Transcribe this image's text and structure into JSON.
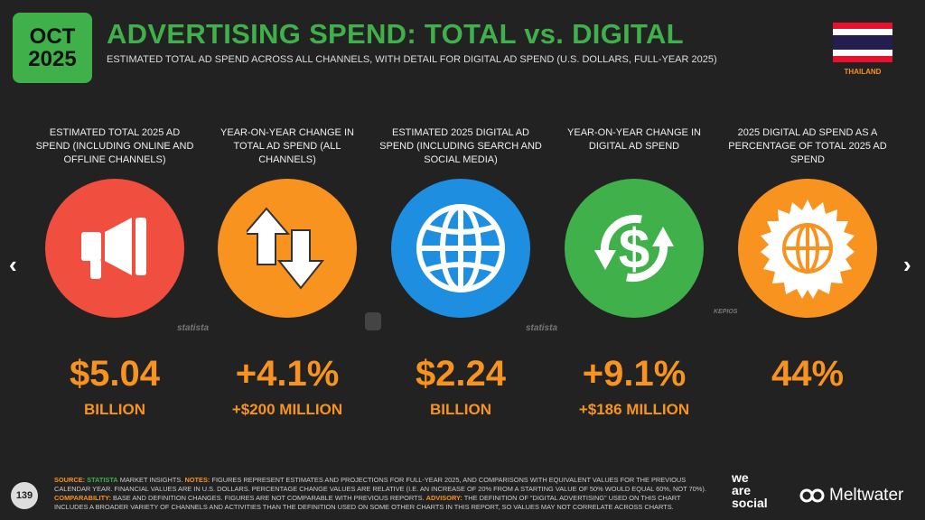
{
  "badge": {
    "month": "OCT",
    "year": "2025"
  },
  "title": "ADVERTISING SPEND: TOTAL vs. DIGITAL",
  "subtitle": "ESTIMATED TOTAL AD SPEND ACROSS ALL CHANNELS, WITH DETAIL FOR DIGITAL AD SPEND (U.S. DOLLARS, FULL-YEAR 2025)",
  "country": "THAILAND",
  "colors": {
    "green": "#3fb04a",
    "orange": "#f7931e",
    "red": "#f04e3e",
    "blue": "#1e8fe0",
    "bg": "#222222"
  },
  "nav": {
    "prev": "‹",
    "next": "›"
  },
  "metrics": [
    {
      "label": "ESTIMATED TOTAL 2025 AD SPEND (INCLUDING ONLINE AND OFFLINE CHANNELS)",
      "value": "$5.04",
      "sub": "BILLION",
      "icon": "megaphone-icon",
      "color": "#f04e3e"
    },
    {
      "label": "YEAR-ON-YEAR CHANGE IN TOTAL AD SPEND (ALL CHANNELS)",
      "value": "+4.1%",
      "sub": "+$200 MILLION",
      "icon": "up-down-arrows-icon",
      "color": "#f7931e"
    },
    {
      "label": "ESTIMATED 2025 DIGITAL AD SPEND (INCLUDING SEARCH AND SOCIAL MEDIA)",
      "value": "$2.24",
      "sub": "BILLION",
      "icon": "globe-icon",
      "color": "#1e8fe0"
    },
    {
      "label": "YEAR-ON-YEAR CHANGE IN DIGITAL AD SPEND",
      "value": "+9.1%",
      "sub": "+$186 MILLION",
      "icon": "dollar-cycle-icon",
      "color": "#3fb04a"
    },
    {
      "label": "2025 DIGITAL AD SPEND AS A PERCENTAGE OF TOTAL 2025 AD SPEND",
      "value": "44%",
      "sub": "",
      "icon": "globe-badge-icon",
      "color": "#f7931e"
    }
  ],
  "watermarks": {
    "statista": "statista",
    "kepios": "KEPIOS"
  },
  "page_number": "139",
  "footnote": {
    "source_k": "SOURCE:",
    "source_v": "STATISTA",
    "source_t": "MARKET INSIGHTS.",
    "notes_k": "NOTES:",
    "notes_t": "FIGURES REPRESENT ESTIMATES AND PROJECTIONS FOR FULL-YEAR 2025, AND COMPARISONS WITH EQUIVALENT VALUES FOR THE PREVIOUS CALENDAR YEAR. FINANCIAL VALUES ARE IN U.S. DOLLARS. PERCENTAGE CHANGE VALUES ARE RELATIVE (I.E. AN INCREASE OF 20% FROM A STARTING VALUE OF 50% WOULD EQUAL 60%, NOT 70%).",
    "comp_k": "COMPARABILITY:",
    "comp_t": "BASE AND DEFINITION CHANGES. FIGURES ARE NOT COMPARABLE WITH PREVIOUS REPORTS.",
    "adv_k": "ADVISORY:",
    "adv_t": "THE DEFINITION OF \"DIGITAL ADVERTISING\" USED ON THIS CHART INCLUDES A BROADER VARIETY OF CHANNELS AND ACTIVITIES THAN THE DEFINITION USED ON SOME OTHER CHARTS IN THIS REPORT, SO VALUES MAY NOT CORRELATE ACROSS CHARTS."
  },
  "brands": {
    "was_1": "we",
    "was_2": "are",
    "was_3": "social",
    "meltwater": "Meltwater"
  }
}
